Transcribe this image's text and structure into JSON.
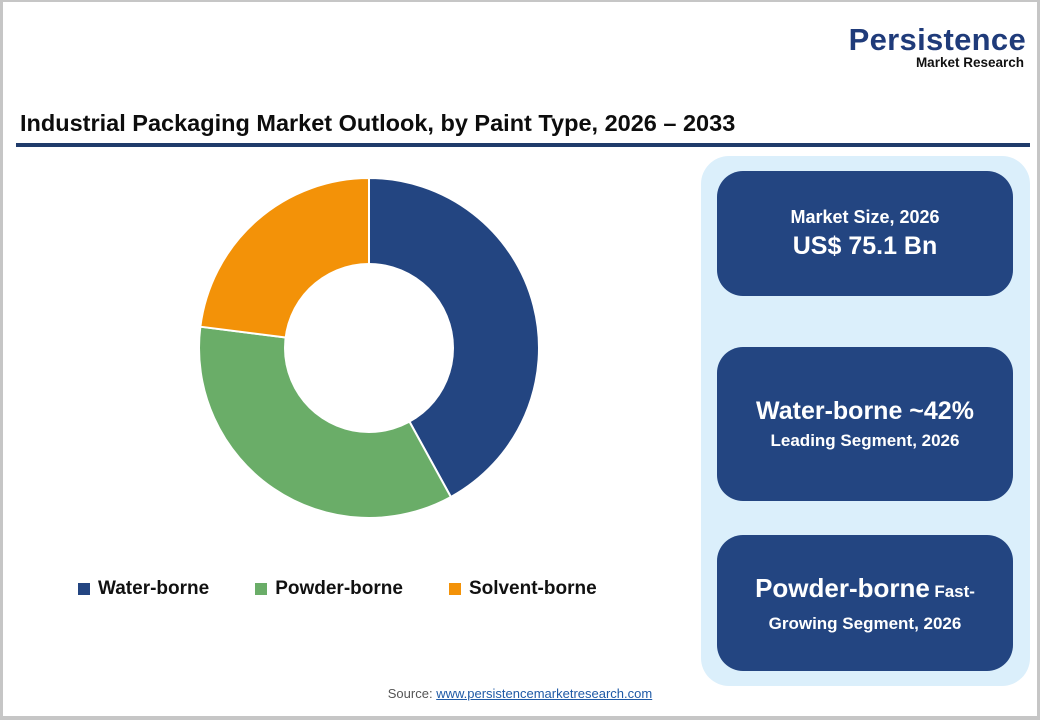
{
  "logo": {
    "main": "Persistence",
    "sub": "Market Research"
  },
  "header": {
    "title": "Industrial Packaging Market Outlook, by Paint Type, 2026 – 2033"
  },
  "legend": [
    {
      "label": "Water-borne",
      "color": "#234581"
    },
    {
      "label": "Powder-borne",
      "color": "#6aad68"
    },
    {
      "label": "Solvent-borne",
      "color": "#f39208"
    }
  ],
  "cards": {
    "market_size": {
      "label": "Market Size, 2026",
      "value": "US$ 75.1 Bn"
    },
    "leading": {
      "value": "Water-borne ~42%",
      "label": "Leading Segment, 2026"
    },
    "fastest": {
      "big": "Powder-borne",
      "small": "Fast-",
      "line2": "Growing Segment, 2026"
    }
  },
  "source": {
    "prefix": "Source: ",
    "link": "www.persistencemarketresearch.com"
  },
  "colors": {
    "brand_navy": "#234581",
    "panel_bg": "#dbeffb",
    "rule": "#1f3b6b"
  },
  "chart_data": {
    "type": "pie",
    "variant": "donut",
    "title": "Industrial Packaging Market Outlook, by Paint Type, 2026 – 2033",
    "categories": [
      "Water-borne",
      "Powder-borne",
      "Solvent-borne"
    ],
    "values": [
      42,
      35,
      23
    ],
    "unit": "%",
    "colors": [
      "#234581",
      "#6aad68",
      "#f39208"
    ],
    "start_angle_deg": 0,
    "direction": "clockwise",
    "legend_position": "bottom",
    "data_labels": false
  }
}
